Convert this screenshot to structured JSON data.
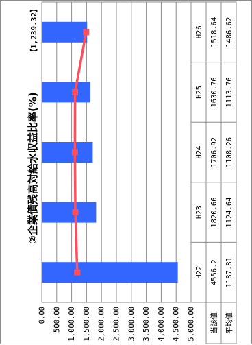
{
  "chart_data": {
    "type": "bar",
    "title": "②企業債残高対給水収益比率(%)",
    "reference_label": "【1,239.32】",
    "categories": [
      "H22",
      "H23",
      "H24",
      "H25",
      "H26"
    ],
    "category_labels": [
      "H22",
      "H23",
      "H24",
      "H25",
      "H26"
    ],
    "series": [
      {
        "name": "当該値",
        "kind": "bar",
        "color": "#3366ff",
        "values": [
          4556.2,
          1820.66,
          1706.92,
          1630.76,
          1518.64
        ],
        "value_labels": [
          "4556.2",
          "1820.66",
          "1706.92",
          "1630.76",
          "1518.64"
        ]
      },
      {
        "name": "平均値",
        "kind": "line",
        "color": "#ff4d5a",
        "values": [
          1187.81,
          1124.64,
          1108.26,
          1113.76,
          1486.62
        ],
        "value_labels": [
          "1187.81",
          "1124.64",
          "1108.26",
          "1113.76",
          "1486.62"
        ]
      }
    ],
    "value_axis": {
      "range": [
        0,
        5000
      ],
      "ticks": [
        0,
        500,
        1000,
        1500,
        2000,
        2500,
        3000,
        3500,
        4000,
        4500,
        5000
      ],
      "tick_labels": [
        "0.00",
        "500.00",
        "1,000.00",
        "1,500.00",
        "2,000.00",
        "2,500.00",
        "3,000.00",
        "3,500.00",
        "4,000.00",
        "4,500.00",
        "5,000.00"
      ]
    },
    "grid": true,
    "legend": "data-table",
    "orientation": "rotated 90° counter-clockwise"
  }
}
